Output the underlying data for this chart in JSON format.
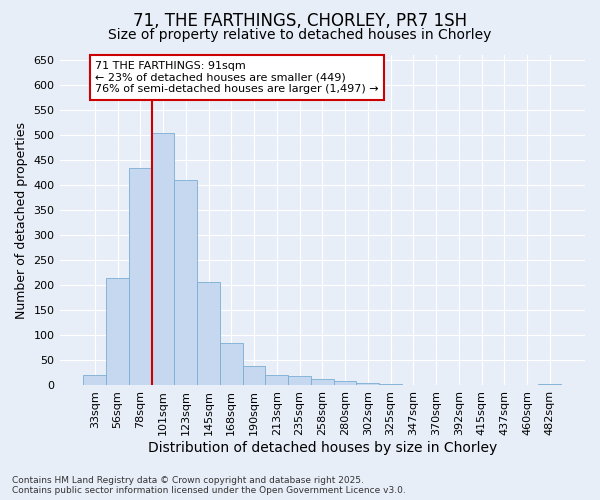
{
  "title": "71, THE FARTHINGS, CHORLEY, PR7 1SH",
  "subtitle": "Size of property relative to detached houses in Chorley",
  "xlabel": "Distribution of detached houses by size in Chorley",
  "ylabel": "Number of detached properties",
  "categories": [
    "33sqm",
    "56sqm",
    "78sqm",
    "101sqm",
    "123sqm",
    "145sqm",
    "168sqm",
    "190sqm",
    "213sqm",
    "235sqm",
    "258sqm",
    "280sqm",
    "302sqm",
    "325sqm",
    "347sqm",
    "370sqm",
    "392sqm",
    "415sqm",
    "437sqm",
    "460sqm",
    "482sqm"
  ],
  "values": [
    20,
    215,
    435,
    505,
    410,
    207,
    85,
    38,
    20,
    18,
    12,
    8,
    5,
    2,
    1,
    1,
    1,
    0,
    0,
    0,
    3
  ],
  "bar_color": "#c5d8f0",
  "bar_edge_color": "#7aadd4",
  "vline_color": "#cc0000",
  "vline_x_index": 2.5,
  "annotation_text": "71 THE FARTHINGS: 91sqm\n← 23% of detached houses are smaller (449)\n76% of semi-detached houses are larger (1,497) →",
  "annotation_box_facecolor": "#ffffff",
  "annotation_box_edgecolor": "#cc0000",
  "ylim": [
    0,
    660
  ],
  "yticks": [
    0,
    50,
    100,
    150,
    200,
    250,
    300,
    350,
    400,
    450,
    500,
    550,
    600,
    650
  ],
  "plot_bg_color": "#e8eef8",
  "fig_bg_color": "#e8eef8",
  "grid_color": "#ffffff",
  "footer": "Contains HM Land Registry data © Crown copyright and database right 2025.\nContains public sector information licensed under the Open Government Licence v3.0.",
  "title_fontsize": 12,
  "subtitle_fontsize": 10,
  "xlabel_fontsize": 10,
  "ylabel_fontsize": 9,
  "tick_fontsize": 8,
  "annotation_fontsize": 8,
  "footer_fontsize": 6.5
}
